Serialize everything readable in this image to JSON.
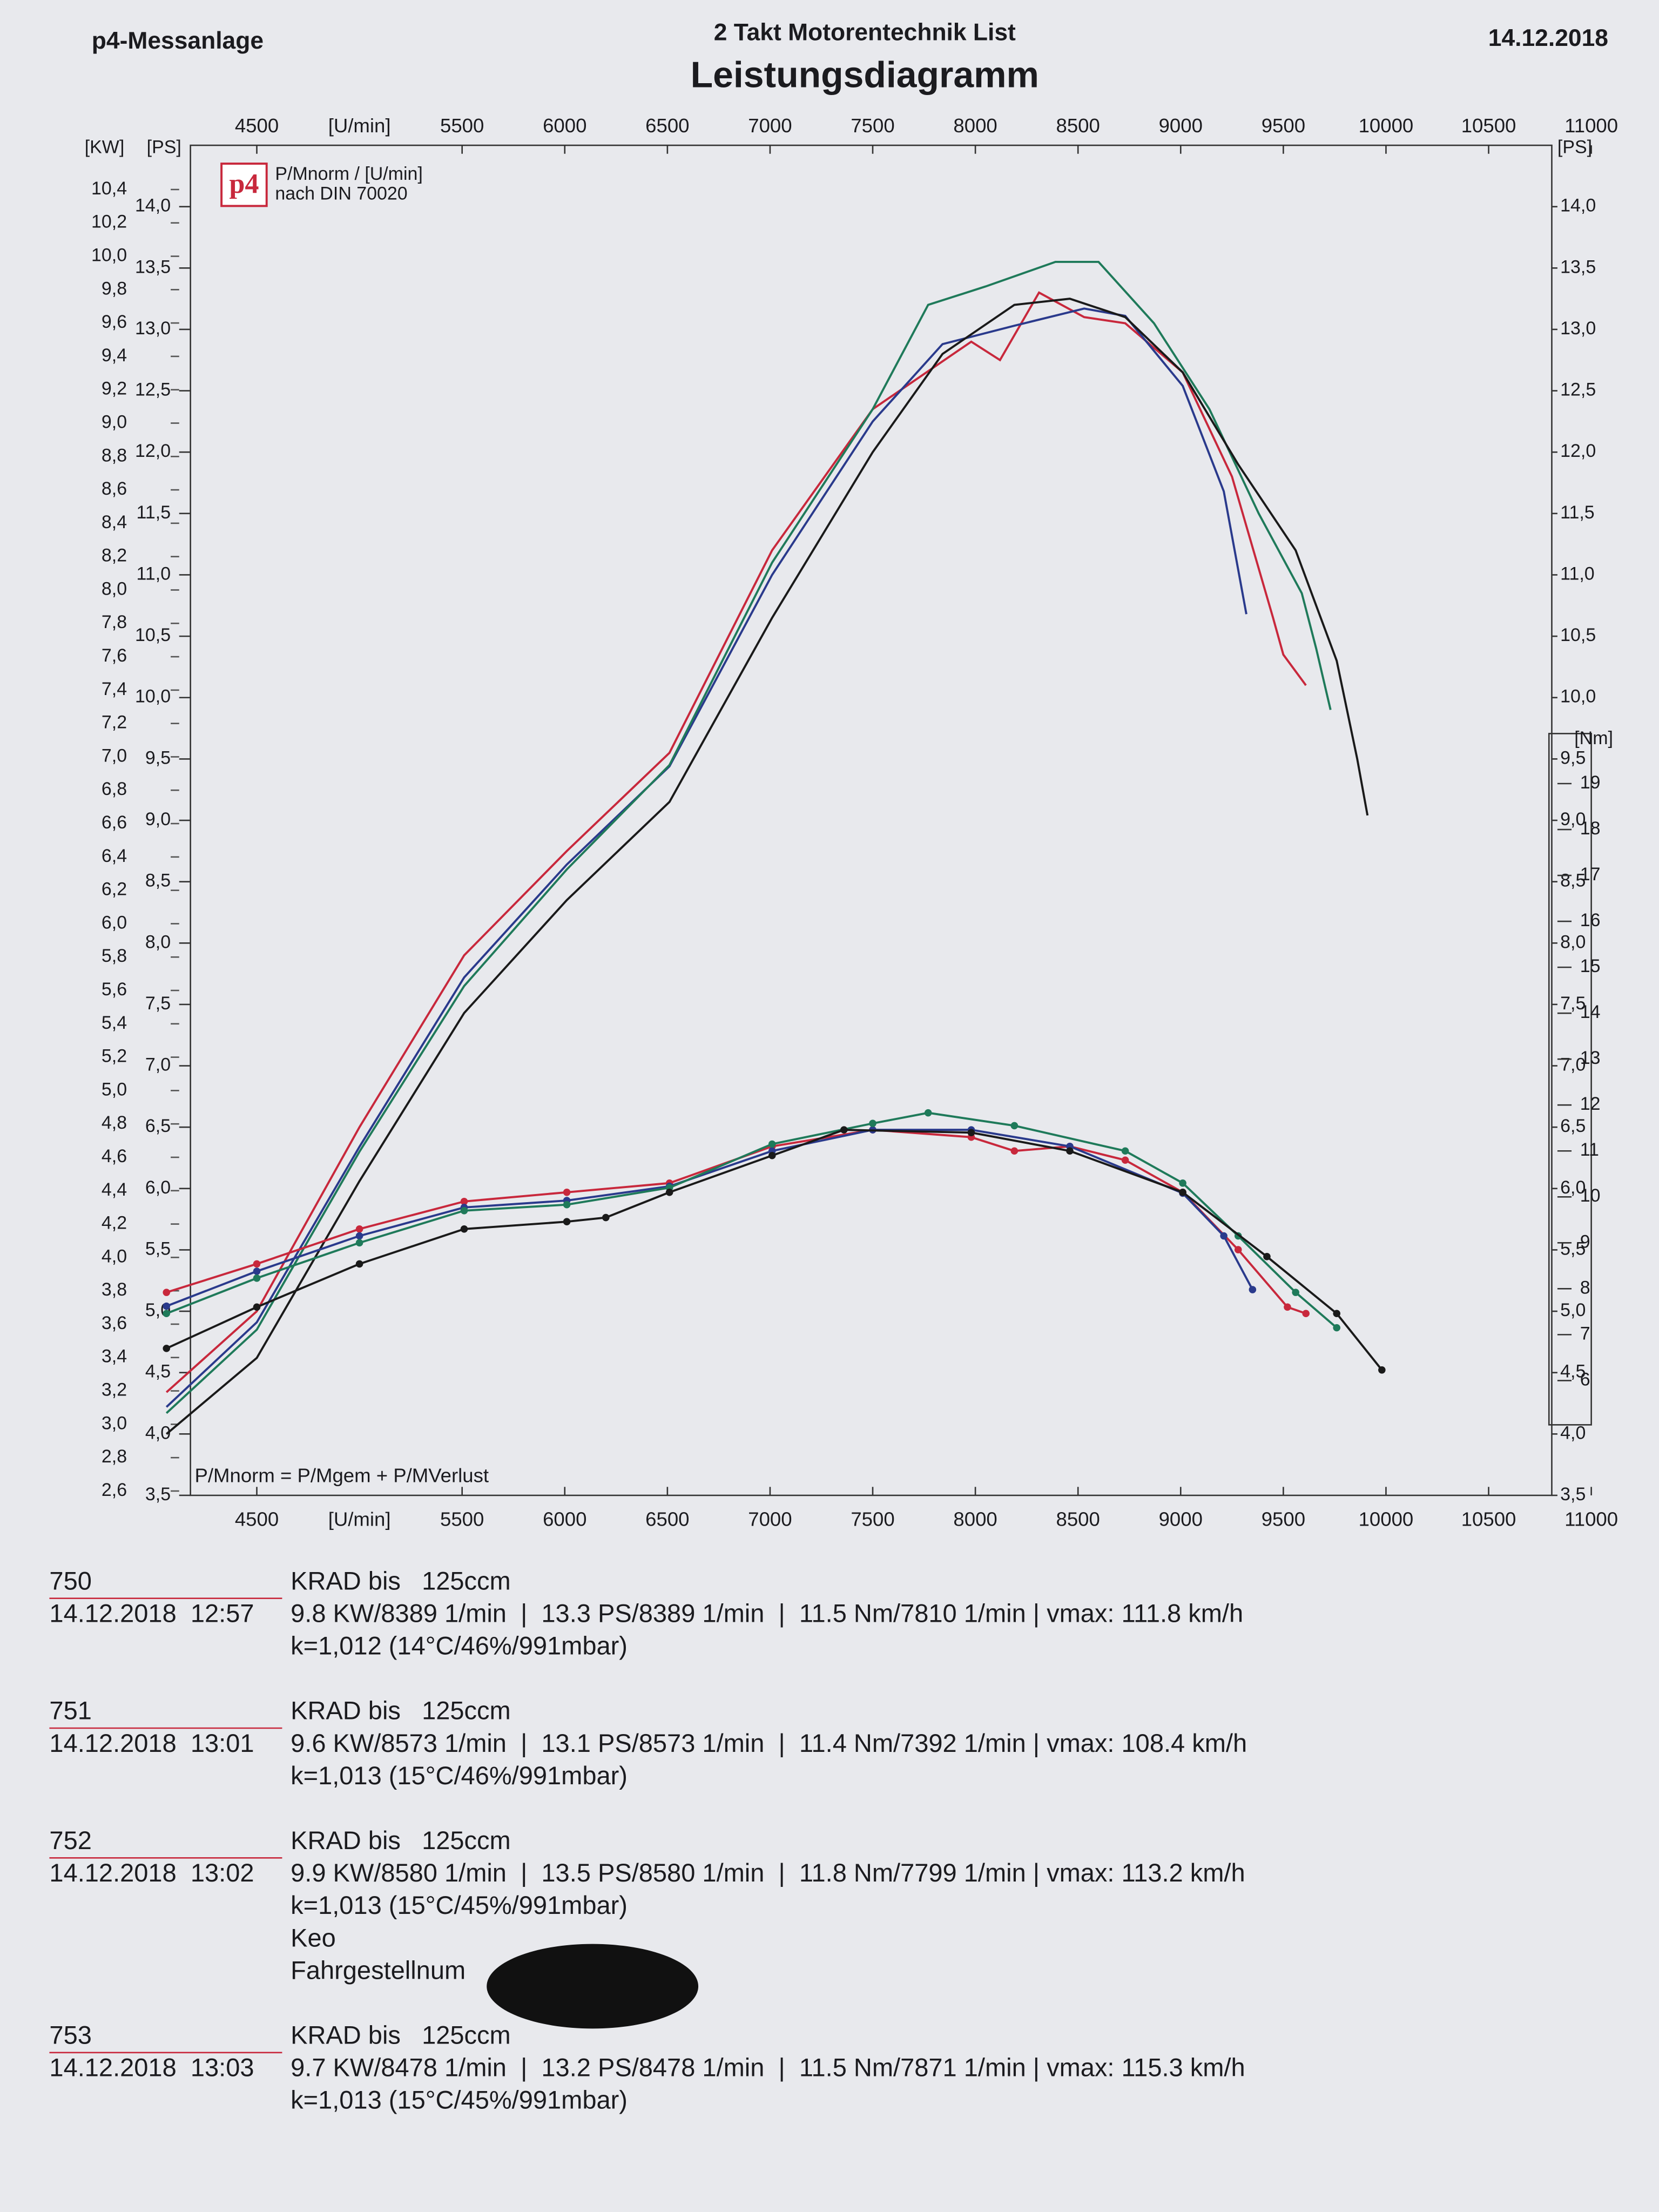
{
  "header": {
    "left": "p4-Messanlage",
    "center": "2 Takt Motorentechnik List",
    "date": "14.12.2018"
  },
  "chart_data": {
    "type": "line",
    "title": "Leistungsdiagramm",
    "logo": "p4",
    "legend_lines": [
      "P/Mnorm / [U/min]",
      "nach DIN 70020"
    ],
    "formula": "P/Mnorm = P/Mgem + P/MVerlust",
    "x_label": "[U/min]",
    "y_label": "[PS]",
    "y2_label": "[Nm]",
    "y3_label": "[KW]",
    "xlim": [
      4060,
      11000
    ],
    "xticks": [
      4500,
      5500,
      6000,
      6500,
      7000,
      7500,
      8000,
      8500,
      9000,
      9500,
      10000,
      10500,
      11000
    ],
    "ylim": [
      3.5,
      14.5
    ],
    "yticks": [
      {
        "value": 3.5,
        "label": "3,5"
      },
      {
        "value": 4.0,
        "label": "4,0"
      },
      {
        "value": 4.5,
        "label": "4,5"
      },
      {
        "value": 5.0,
        "label": "5,0"
      },
      {
        "value": 5.5,
        "label": "5,5"
      },
      {
        "value": 6.0,
        "label": "6,0"
      },
      {
        "value": 6.5,
        "label": "6,5"
      },
      {
        "value": 7.0,
        "label": "7,0"
      },
      {
        "value": 7.5,
        "label": "7,5"
      },
      {
        "value": 8.0,
        "label": "8,0"
      },
      {
        "value": 8.5,
        "label": "8,5"
      },
      {
        "value": 9.0,
        "label": "9,0"
      },
      {
        "value": 9.5,
        "label": "9,5"
      },
      {
        "value": 10.0,
        "label": "10,0"
      },
      {
        "value": 10.5,
        "label": "10,5"
      },
      {
        "value": 11.0,
        "label": "11,0"
      },
      {
        "value": 11.5,
        "label": "11,5"
      },
      {
        "value": 12.0,
        "label": "12,0"
      },
      {
        "value": 12.5,
        "label": "12,5"
      },
      {
        "value": 13.0,
        "label": "13,0"
      },
      {
        "value": 13.5,
        "label": "13,5"
      },
      {
        "value": 14.0,
        "label": "14,0"
      }
    ],
    "y2lim": [
      3.5,
      32.9
    ],
    "y2ticks": [
      6,
      7,
      8,
      9,
      10,
      11,
      12,
      13,
      14,
      15,
      16,
      17,
      18,
      19
    ],
    "y3lim": [
      2.574,
      10.665
    ],
    "y3ticks": [
      {
        "value": 2.6,
        "label": "2,6"
      },
      {
        "value": 2.8,
        "label": "2,8"
      },
      {
        "value": 3.0,
        "label": "3,0"
      },
      {
        "value": 3.2,
        "label": "3,2"
      },
      {
        "value": 3.4,
        "label": "3,4"
      },
      {
        "value": 3.6,
        "label": "3,6"
      },
      {
        "value": 3.8,
        "label": "3,8"
      },
      {
        "value": 4.0,
        "label": "4,0"
      },
      {
        "value": 4.2,
        "label": "4,2"
      },
      {
        "value": 4.4,
        "label": "4,4"
      },
      {
        "value": 4.6,
        "label": "4,6"
      },
      {
        "value": 4.8,
        "label": "4,8"
      },
      {
        "value": 5.0,
        "label": "5,0"
      },
      {
        "value": 5.2,
        "label": "5,2"
      },
      {
        "value": 5.4,
        "label": "5,4"
      },
      {
        "value": 5.6,
        "label": "5,6"
      },
      {
        "value": 5.8,
        "label": "5,8"
      },
      {
        "value": 6.0,
        "label": "6,0"
      },
      {
        "value": 6.2,
        "label": "6,2"
      },
      {
        "value": 6.4,
        "label": "6,4"
      },
      {
        "value": 6.6,
        "label": "6,6"
      },
      {
        "value": 6.8,
        "label": "6,8"
      },
      {
        "value": 7.0,
        "label": "7,0"
      },
      {
        "value": 7.2,
        "label": "7,2"
      },
      {
        "value": 7.4,
        "label": "7,4"
      },
      {
        "value": 7.6,
        "label": "7,6"
      },
      {
        "value": 7.8,
        "label": "7,8"
      },
      {
        "value": 8.0,
        "label": "8,0"
      },
      {
        "value": 8.2,
        "label": "8,2"
      },
      {
        "value": 8.4,
        "label": "8,4"
      },
      {
        "value": 8.6,
        "label": "8,6"
      },
      {
        "value": 8.8,
        "label": "8,8"
      },
      {
        "value": 9.0,
        "label": "9,0"
      },
      {
        "value": 9.2,
        "label": "9,2"
      },
      {
        "value": 9.4,
        "label": "9,4"
      },
      {
        "value": 9.6,
        "label": "9,6"
      },
      {
        "value": 9.8,
        "label": "9,8"
      },
      {
        "value": 10.0,
        "label": "10,0"
      },
      {
        "value": 10.2,
        "label": "10,2"
      },
      {
        "value": 10.4,
        "label": "10,4"
      }
    ],
    "series": [
      {
        "color": "#c8283c",
        "x": [
          4060,
          4500,
          5000,
          5510,
          6010,
          6510,
          7010,
          7500,
          7980,
          8120,
          8310,
          8530,
          8730,
          9010,
          9250,
          9450,
          9500,
          9610
        ],
        "values": [
          4.34,
          5.0,
          6.5,
          7.9,
          8.75,
          9.55,
          11.2,
          12.35,
          12.9,
          12.75,
          13.3,
          13.1,
          13.05,
          12.65,
          11.8,
          10.65,
          10.35,
          10.1
        ]
      },
      {
        "color": "#2a3a8c",
        "x": [
          4060,
          4500,
          5000,
          5510,
          6010,
          6510,
          7010,
          7500,
          7840,
          8190,
          8530,
          8730,
          9010,
          9210,
          9320
        ],
        "values": [
          4.22,
          4.91,
          6.34,
          7.72,
          8.64,
          9.44,
          11.0,
          12.25,
          12.88,
          13.03,
          13.17,
          13.11,
          12.54,
          11.68,
          10.68
        ]
      },
      {
        "color": "#1f7a5a",
        "x": [
          4060,
          4500,
          5000,
          5510,
          6010,
          6510,
          7010,
          7500,
          7770,
          8050,
          8390,
          8600,
          8870,
          9140,
          9380,
          9590,
          9660,
          9730
        ],
        "values": [
          4.17,
          4.85,
          6.3,
          7.65,
          8.6,
          9.45,
          11.1,
          12.35,
          13.2,
          13.35,
          13.55,
          13.55,
          13.05,
          12.35,
          11.5,
          10.85,
          10.4,
          9.9
        ]
      },
      {
        "color": "#1a1a1a",
        "x": [
          4060,
          4500,
          5000,
          5510,
          6010,
          6510,
          7010,
          7500,
          7840,
          8190,
          8460,
          8730,
          9010,
          9280,
          9560,
          9760,
          9860,
          9910
        ],
        "values": [
          4.0,
          4.62,
          6.06,
          7.43,
          8.35,
          9.15,
          10.65,
          12.0,
          12.8,
          13.2,
          13.25,
          13.1,
          12.65,
          11.9,
          11.2,
          10.3,
          9.5,
          9.04
        ]
      },
      {
        "color": "#c8283c",
        "axis": "y2",
        "x": [
          4060,
          4500,
          5000,
          5510,
          6010,
          6510,
          7010,
          7500,
          7980,
          8190,
          8460,
          8730,
          9010,
          9280,
          9520,
          9610
        ],
        "values": [
          7.92,
          8.54,
          9.3,
          9.9,
          10.1,
          10.3,
          11.1,
          11.46,
          11.3,
          11.0,
          11.1,
          10.8,
          10.1,
          8.85,
          7.6,
          7.46
        ]
      },
      {
        "color": "#2a3a8c",
        "axis": "y2",
        "x": [
          4060,
          4500,
          5000,
          5510,
          6010,
          6510,
          7010,
          7500,
          7980,
          8460,
          9010,
          9210,
          9350
        ],
        "values": [
          7.62,
          8.38,
          9.15,
          9.77,
          9.92,
          10.23,
          11.0,
          11.46,
          11.46,
          11.1,
          10.08,
          9.15,
          7.98
        ]
      },
      {
        "color": "#1f7a5a",
        "axis": "y2",
        "x": [
          4060,
          4500,
          5000,
          5510,
          6010,
          6510,
          7010,
          7500,
          7770,
          8190,
          8730,
          9010,
          9280,
          9560,
          9760
        ],
        "values": [
          7.46,
          8.23,
          9.0,
          9.7,
          9.83,
          10.2,
          11.15,
          11.6,
          11.83,
          11.55,
          11.0,
          10.3,
          9.15,
          7.92,
          7.15
        ]
      },
      {
        "color": "#1a1a1a",
        "axis": "y2",
        "x": [
          4060,
          4500,
          5000,
          5510,
          6010,
          6200,
          6510,
          7010,
          7360,
          7980,
          8460,
          9010,
          9420,
          9760,
          9980
        ],
        "values": [
          6.7,
          7.6,
          8.54,
          9.3,
          9.46,
          9.55,
          10.1,
          10.9,
          11.46,
          11.4,
          11.0,
          10.1,
          8.7,
          7.46,
          6.23
        ]
      }
    ]
  },
  "runs": [
    {
      "number": "750",
      "date": "14.12.2018  12:57",
      "vehicle": "KRAD bis   125ccm",
      "result": "9.8 KW/8389 1/min  |  13.3 PS/8389 1/min  |  11.5 Nm/7810 1/min | vmax: 111.8 km/h",
      "conditions": "k=1,012 (14°C/46%/991mbar)",
      "notes": []
    },
    {
      "number": "751",
      "date": "14.12.2018  13:01",
      "vehicle": "KRAD bis   125ccm",
      "result": "9.6 KW/8573 1/min  |  13.1 PS/8573 1/min  |  11.4 Nm/7392 1/min | vmax: 108.4 km/h",
      "conditions": "k=1,013 (15°C/46%/991mbar)",
      "notes": []
    },
    {
      "number": "752",
      "date": "14.12.2018  13:02",
      "vehicle": "KRAD bis   125ccm",
      "result": "9.9 KW/8580 1/min  |  13.5 PS/8580 1/min  |  11.8 Nm/7799 1/min | vmax: 113.2 km/h",
      "conditions": "k=1,013 (15°C/45%/991mbar)",
      "notes": [
        "Keo",
        "Fahrgestellnum"
      ]
    },
    {
      "number": "753",
      "date": "14.12.2018  13:03",
      "vehicle": "KRAD bis   125ccm",
      "result": "9.7 KW/8478 1/min  |  13.2 PS/8478 1/min  |  11.5 Nm/7871 1/min | vmax: 115.3 km/h",
      "conditions": "k=1,013 (15°C/45%/991mbar)",
      "notes": []
    }
  ]
}
